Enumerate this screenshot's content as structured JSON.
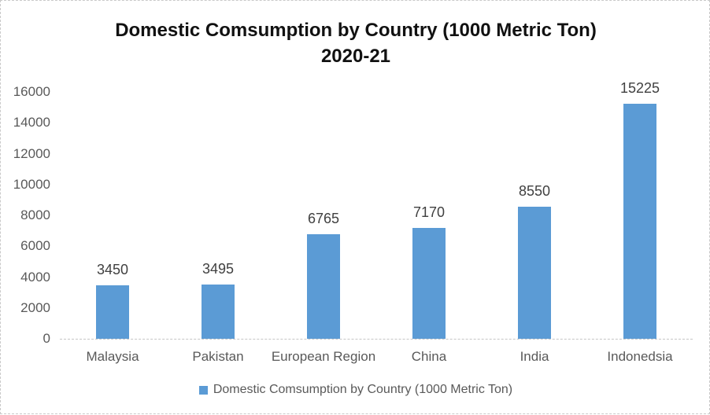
{
  "chart_data": {
    "type": "bar",
    "title_line1": "Domestic Comsumption by Country (1000 Metric Ton)",
    "title_line2": "2020-21",
    "categories": [
      "Malaysia",
      "Pakistan",
      "European Region",
      "China",
      "India",
      "Indonedsia"
    ],
    "values": [
      3450,
      3495,
      6765,
      7170,
      8550,
      15225
    ],
    "ylim": [
      0,
      16000
    ],
    "yticks": [
      0,
      2000,
      4000,
      6000,
      8000,
      10000,
      12000,
      14000,
      16000
    ],
    "grid": false,
    "data_labels": true,
    "legend": {
      "label": "Domestic Comsumption by Country (1000 Metric Ton)",
      "position": "bottom"
    },
    "colors": {
      "bar": "#5B9BD5",
      "title_text": "#111111",
      "axis_text": "#595959",
      "data_label_text": "#404040",
      "axis_line": "#c6c6c6",
      "frame_border": "#c9c9c9",
      "background": "#ffffff"
    }
  }
}
